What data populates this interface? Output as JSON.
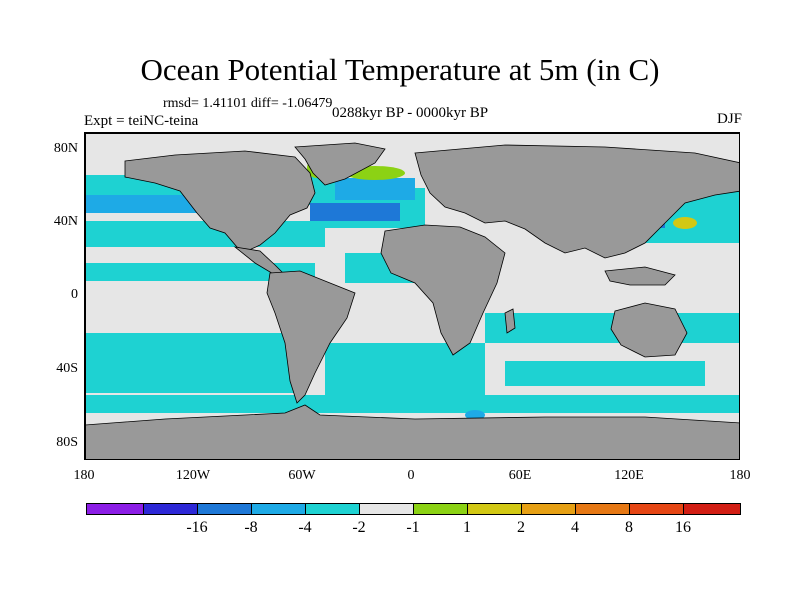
{
  "title": "Ocean Potential Temperature at 5m (in C)",
  "stats": "rmsd= 1.41101 diff= -1.06479",
  "period": "0288kyr BP - 0000kyr BP",
  "experiment": "Expt = teiNC-teina",
  "season": "DJF",
  "lat_labels": [
    "80N",
    "40N",
    "0",
    "40S",
    "80S"
  ],
  "lon_labels": [
    "180",
    "120W",
    "60W",
    "0",
    "60E",
    "120E",
    "180"
  ],
  "colorbar": {
    "colors": [
      "#8c1ee6",
      "#2d28d7",
      "#1e78d7",
      "#1eaae6",
      "#1ed2d2",
      "#e6e6e6",
      "#8cd214",
      "#d2c814",
      "#e6a014",
      "#e67814",
      "#e64614",
      "#d21e14"
    ],
    "labels": [
      "-16",
      "-8",
      "-4",
      "-2",
      "-1",
      "1",
      "2",
      "4",
      "8",
      "16"
    ]
  },
  "map_colors": {
    "land": "#999999",
    "ocean_neutral": "#e6e6e6",
    "cyan": "#1ed2d2",
    "light_blue": "#1eaae6",
    "blue": "#1e78d7",
    "green": "#8cd214",
    "yellow": "#d2c814"
  }
}
